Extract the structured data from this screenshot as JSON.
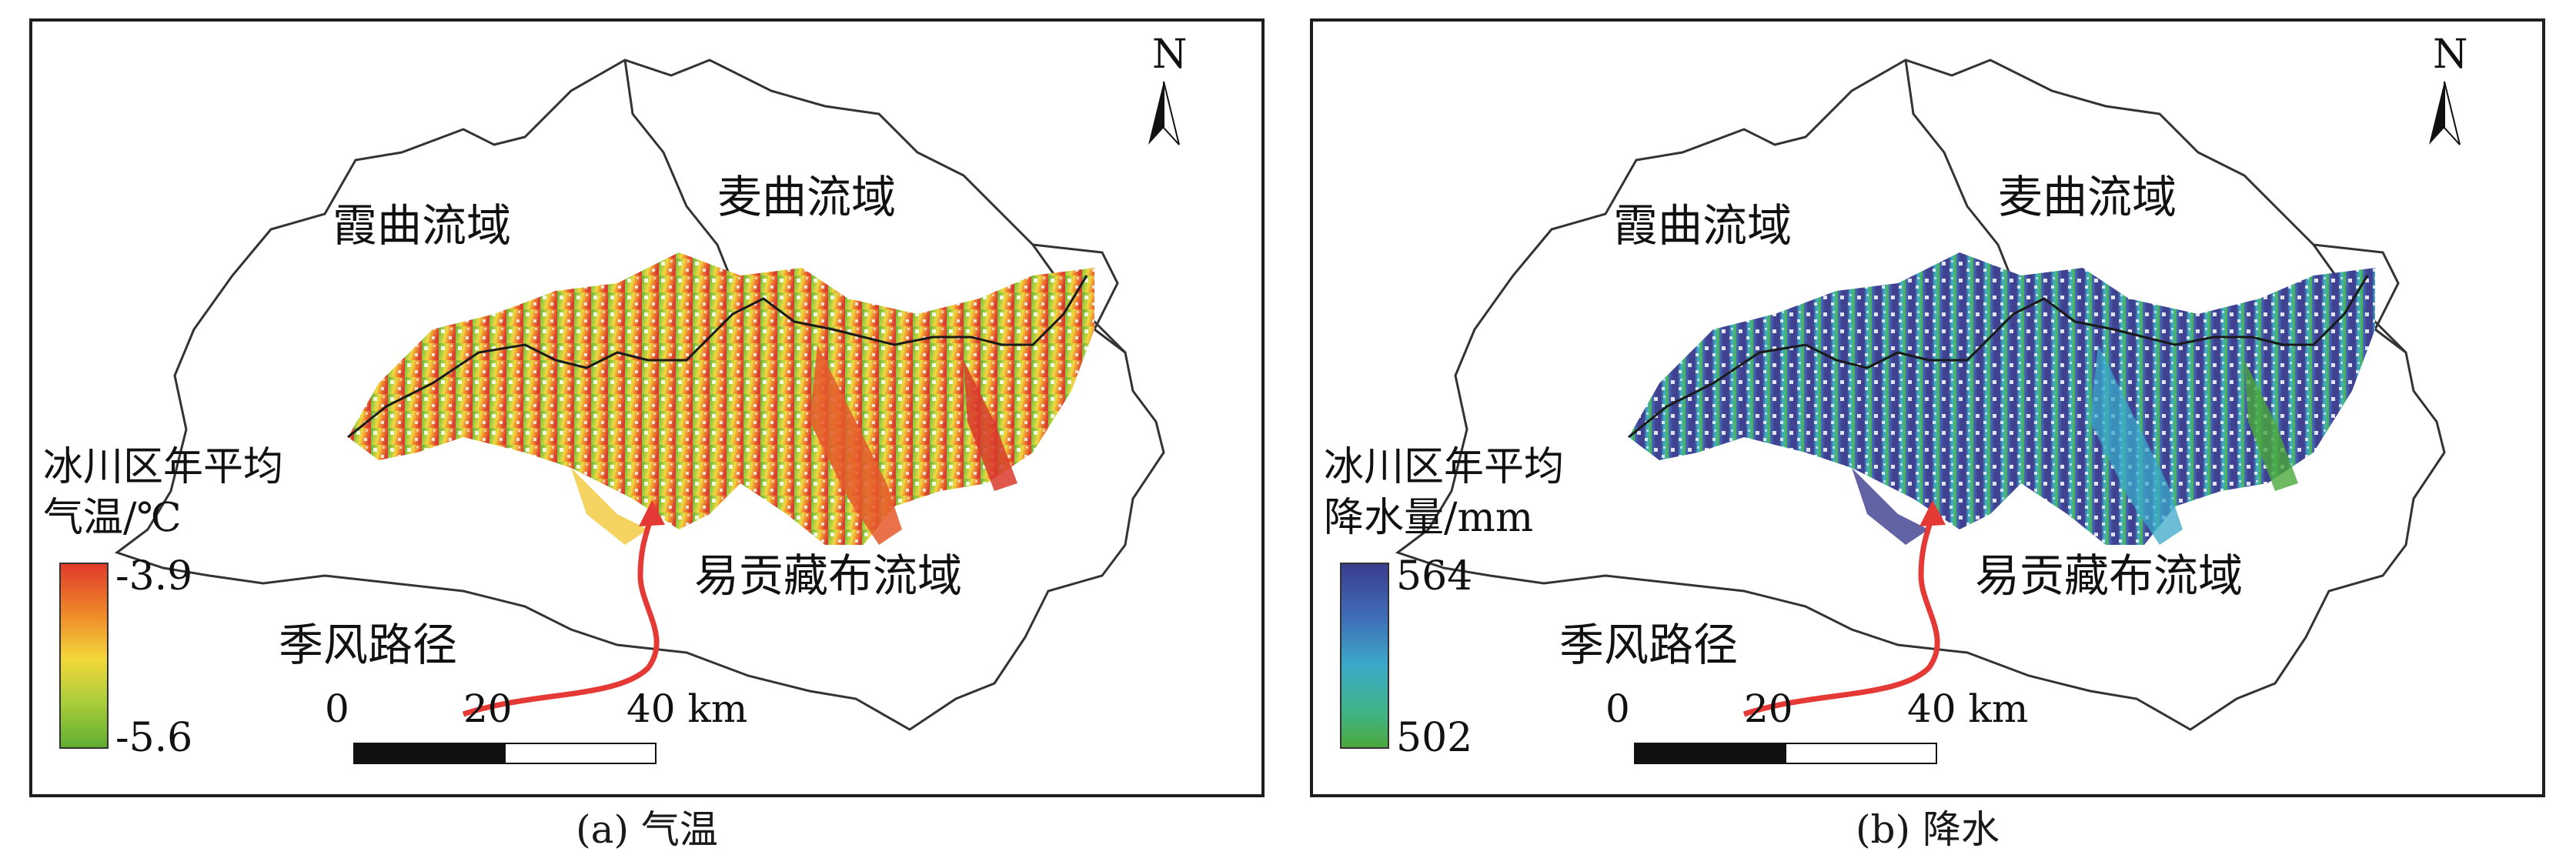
{
  "panels": [
    {
      "id": "a",
      "caption": "(a) 气温",
      "labels": {
        "basin_xiaqu": "霞曲流域",
        "basin_maiqu": "麦曲流域",
        "basin_yigong": "易贡藏布流域",
        "monsoon": "季风路径"
      },
      "legend": {
        "title_line1": "冰川区年平均",
        "title_line2": "气温/℃",
        "max": "-3.9",
        "min": "-5.6",
        "colors": [
          "#e03a2a",
          "#f08a2a",
          "#f2d83a",
          "#a8cc3a",
          "#5fae32"
        ]
      },
      "north": "N",
      "scale": {
        "ticks": [
          "0",
          "20",
          "40 km"
        ]
      }
    },
    {
      "id": "b",
      "caption": "(b) 降水",
      "labels": {
        "basin_xiaqu": "霞曲流域",
        "basin_maiqu": "麦曲流域",
        "basin_yigong": "易贡藏布流域",
        "monsoon": "季风路径"
      },
      "legend": {
        "title_line1": "冰川区年平均",
        "title_line2": "降水量/mm",
        "max": "564",
        "min": "502",
        "colors": [
          "#3a3c8e",
          "#3f6fb8",
          "#3aa8c8",
          "#3fb48a",
          "#4aa83a"
        ]
      },
      "north": "N",
      "scale": {
        "ticks": [
          "0",
          "20",
          "40 km"
        ]
      }
    }
  ]
}
